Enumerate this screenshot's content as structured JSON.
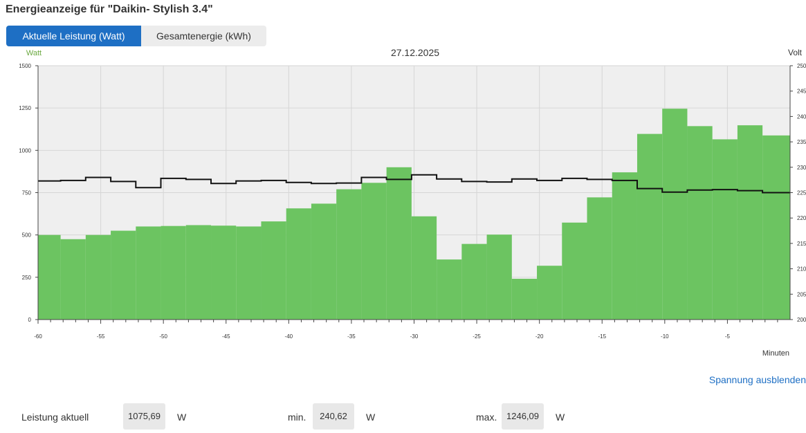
{
  "title": "Energieanzeige für \"Daikin- Stylish 3.4\"",
  "tabs": [
    {
      "label": "Aktuelle Leistung (Watt)",
      "active": true
    },
    {
      "label": "Gesamtenergie (kWh)",
      "active": false
    }
  ],
  "hide_voltage_label": "Spannung ausblenden",
  "stats": {
    "current_label": "Leistung aktuell",
    "current_value": "1075,69",
    "min_label": "min.",
    "min_value": "240,62",
    "max_label": "max.",
    "max_value": "1246,09",
    "unit": "W"
  },
  "colors": {
    "power_fill": "#6cc461",
    "voltage_line": "#111111",
    "plot_bg": "#efefef",
    "accent": "#1e6fc4",
    "watt_axis_label": "#6aa83f"
  },
  "chart_data": {
    "type": "area",
    "title": "27.12.2025",
    "xlabel": "Minuten",
    "ylabel_left": "Watt",
    "ylabel_right": "Volt",
    "xlim": [
      -60,
      0
    ],
    "ylim_left": [
      0,
      1500
    ],
    "ylim_right": [
      200,
      250
    ],
    "x_ticks": [
      -60,
      -55,
      -50,
      -45,
      -40,
      -35,
      -30,
      -25,
      -20,
      -15,
      -10,
      -5
    ],
    "y_ticks_left": [
      0,
      250,
      500,
      750,
      1000,
      1250,
      1500
    ],
    "y_ticks_right": [
      200,
      205,
      210,
      215,
      220,
      225,
      230,
      235,
      240,
      245,
      250
    ],
    "grid": true,
    "step": true,
    "series": [
      {
        "name": "Watt",
        "axis": "left",
        "x": [
          -60,
          -58.2,
          -56.2,
          -54.2,
          -52.2,
          -50.2,
          -48.2,
          -46.2,
          -44.2,
          -42.2,
          -40.2,
          -38.2,
          -36.2,
          -34.2,
          -32.2,
          -30.2,
          -28.2,
          -26.2,
          -24.2,
          -22.2,
          -20.2,
          -18.2,
          -16.2,
          -14.2,
          -12.2,
          -10.2,
          -8.2,
          -6.2,
          -4.2,
          -2.2
        ],
        "values": [
          500,
          475,
          500,
          525,
          550,
          553,
          558,
          555,
          550,
          580,
          657,
          685,
          770,
          808,
          900,
          610,
          355,
          447,
          502,
          241,
          318,
          573,
          722,
          870,
          1097,
          1246,
          1143,
          1065,
          1148,
          1088
        ]
      },
      {
        "name": "Volt",
        "axis": "right",
        "x": [
          -60,
          -58.2,
          -56.2,
          -54.2,
          -52.2,
          -50.2,
          -48.2,
          -46.2,
          -44.2,
          -42.2,
          -40.2,
          -38.2,
          -36.2,
          -34.2,
          -32.2,
          -30.2,
          -28.2,
          -26.2,
          -24.2,
          -22.2,
          -20.2,
          -18.2,
          -16.2,
          -14.2,
          -12.2,
          -10.2,
          -8.2,
          -6.2,
          -4.2,
          -2.2
        ],
        "values": [
          227.3,
          227.4,
          228.0,
          227.2,
          226.0,
          227.8,
          227.6,
          226.8,
          227.3,
          227.4,
          227.0,
          226.8,
          226.9,
          228.0,
          227.6,
          228.5,
          227.7,
          227.2,
          227.1,
          227.7,
          227.4,
          227.8,
          227.6,
          227.4,
          225.8,
          225.1,
          225.5,
          225.6,
          225.4,
          225.0
        ]
      }
    ]
  }
}
